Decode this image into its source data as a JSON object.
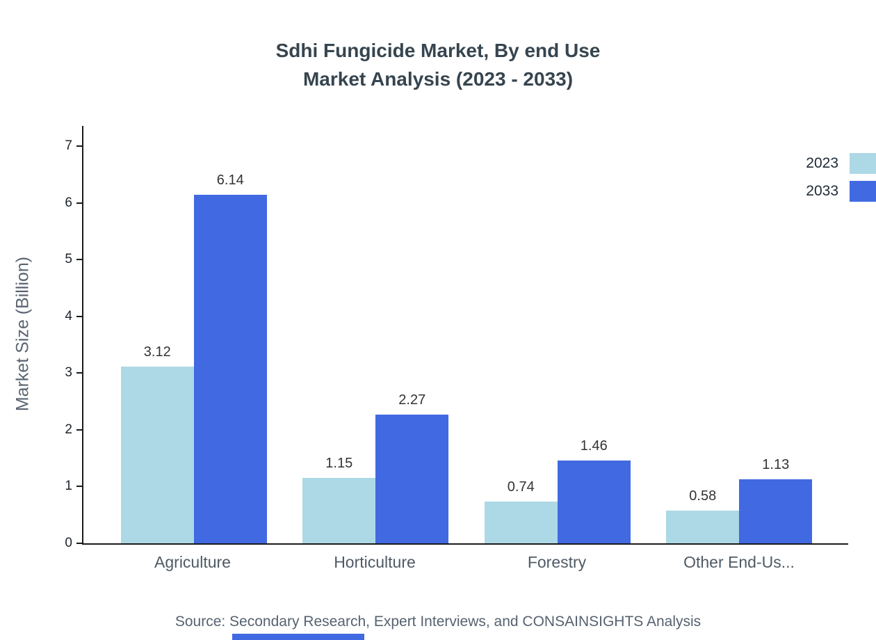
{
  "title": {
    "line1": "Sdhi Fungicide Market, By end Use",
    "line2": "Market Analysis (2023 - 2033)"
  },
  "source_note": "Source: Secondary Research, Expert Interviews, and CONSAINSIGHTS Analysis",
  "colors": {
    "series_2023": "#ADD8E6",
    "series_2033": "#4169E1",
    "axis": "#1a1a1a",
    "accent_bar": "#4169E1"
  },
  "chart_data": {
    "type": "bar",
    "title": "Sdhi Fungicide Market, By end Use Market Analysis (2023 - 2033)",
    "categories": [
      "Agriculture",
      "Horticulture",
      "Forestry",
      "Other End-Us..."
    ],
    "series": [
      {
        "name": "2023",
        "color": "#ADD8E6",
        "values": [
          3.12,
          1.15,
          0.74,
          0.58
        ]
      },
      {
        "name": "2033",
        "color": "#4169E1",
        "values": [
          6.14,
          2.27,
          1.46,
          1.13
        ]
      }
    ],
    "xlabel": "",
    "ylabel": "Market Size (Billion)",
    "ylim": [
      0,
      7
    ],
    "ytick_step": 1,
    "grid": false,
    "legend_position": "top-right",
    "value_labels": true
  }
}
